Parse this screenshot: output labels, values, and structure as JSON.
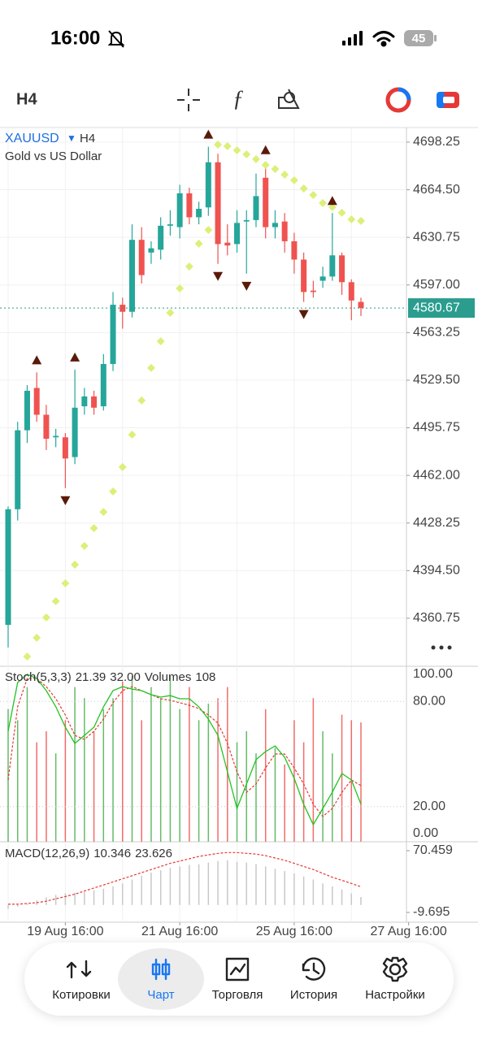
{
  "status_bar": {
    "time": "16:00",
    "battery": "45"
  },
  "toolbar": {
    "timeframe": "H4"
  },
  "chart_data": {
    "type": "candlestick",
    "symbol": "XAUUSD",
    "timeframe": "H4",
    "description": "Gold vs US Dollar",
    "up_color": "#26a69a",
    "down_color": "#ef5350",
    "candles": [
      [
        4356,
        4440,
        4340,
        4438
      ],
      [
        4438,
        4500,
        4430,
        4494
      ],
      [
        4494,
        4526,
        4485,
        4522
      ],
      [
        4524,
        4535,
        4500,
        4505
      ],
      [
        4505,
        4512,
        4480,
        4488
      ],
      [
        4489,
        4495,
        4482,
        4490
      ],
      [
        4489,
        4492,
        4453,
        4474
      ],
      [
        4475,
        4537,
        4470,
        4510
      ],
      [
        4511,
        4524,
        4505,
        4518
      ],
      [
        4518,
        4522,
        4505,
        4510
      ],
      [
        4511,
        4548,
        4508,
        4541
      ],
      [
        4541,
        4592,
        4536,
        4583
      ],
      [
        4583,
        4588,
        4566,
        4578
      ],
      [
        4578,
        4640,
        4574,
        4629
      ],
      [
        4629,
        4638,
        4598,
        4604
      ],
      [
        4620,
        4628,
        4612,
        4623
      ],
      [
        4622,
        4645,
        4615,
        4639
      ],
      [
        4639,
        4650,
        4632,
        4640
      ],
      [
        4638,
        4668,
        4630,
        4662
      ],
      [
        4662,
        4666,
        4640,
        4645
      ],
      [
        4645,
        4656,
        4640,
        4651
      ],
      [
        4652,
        4695,
        4646,
        4684
      ],
      [
        4684,
        4690,
        4612,
        4626
      ],
      [
        4627,
        4640,
        4618,
        4625
      ],
      [
        4626,
        4650,
        4620,
        4641
      ],
      [
        4642,
        4650,
        4605,
        4643
      ],
      [
        4643,
        4676,
        4638,
        4660
      ],
      [
        4673,
        4684,
        4630,
        4638
      ],
      [
        4638,
        4650,
        4630,
        4641
      ],
      [
        4642,
        4648,
        4620,
        4628
      ],
      [
        4628,
        4634,
        4605,
        4615
      ],
      [
        4615,
        4620,
        4585,
        4592
      ],
      [
        4593,
        4600,
        4588,
        4592
      ],
      [
        4600,
        4610,
        4595,
        4603
      ],
      [
        4603,
        4648,
        4600,
        4618
      ],
      [
        4618,
        4620,
        4590,
        4599
      ],
      [
        4599,
        4601,
        4572,
        4586
      ],
      [
        4585,
        4588,
        4575,
        4580.67
      ]
    ],
    "ylim": [
      4326.7,
      4708.6
    ],
    "yticks": [
      4698.25,
      {
        "value": 4664.5,
        "label": "4664.50"
      },
      4630.75,
      {
        "value": 4597,
        "label": "4597.00"
      },
      4563.25,
      {
        "value": 4529.5,
        "label": "4529.50"
      },
      4495.75,
      {
        "value": 4462,
        "label": "4462.00"
      },
      4428.25,
      {
        "value": 4394.5,
        "label": "4394.50"
      },
      4360.75
    ],
    "grid": true,
    "last_price": 4580.67,
    "x_labels": [
      "19 Aug 16:00",
      "21 Aug 16:00",
      "25 Aug 16:00",
      "27 Aug 16:00"
    ],
    "sar": {
      "color": "#dcef78",
      "values": [
        null,
        null,
        4333.6,
        4346.9,
        4361.3,
        4372.8,
        4385.5,
        4398.7,
        4412,
        4424.6,
        4436.1,
        4450.6,
        4467.9,
        4490.9,
        4515.1,
        4538.2,
        4557.1,
        4577.3,
        4594.6,
        4610.1,
        4626.3,
        4636,
        4696.5,
        4695.4,
        4692.5,
        4689.6,
        4686.2,
        4682.1,
        4679.2,
        4675.2,
        4671.2,
        4665.4,
        4660.8,
        4655.1,
        4652.2,
        4648.2,
        4643.5,
        4642.4
      ]
    },
    "fractals_up": [
      null,
      null,
      null,
      4535,
      null,
      null,
      null,
      4537,
      null,
      null,
      null,
      null,
      null,
      null,
      null,
      null,
      null,
      null,
      null,
      null,
      null,
      4695,
      null,
      null,
      null,
      null,
      null,
      4684,
      null,
      null,
      null,
      null,
      null,
      null,
      4648,
      null,
      null,
      null
    ],
    "fractals_down": [
      null,
      null,
      null,
      null,
      null,
      null,
      4453,
      null,
      null,
      null,
      null,
      null,
      null,
      null,
      null,
      null,
      null,
      null,
      null,
      null,
      null,
      null,
      4612,
      null,
      null,
      4605,
      null,
      null,
      null,
      null,
      null,
      4585,
      null,
      null,
      null,
      null,
      null,
      null
    ],
    "fractal_color": "#5a1a0a",
    "stochastic": {
      "label": "Stoch(5,3,3)",
      "k_readout": 21.39,
      "d_readout": {
        "value": 32,
        "label": "32.00"
      },
      "volumes_label": "Volumes",
      "volume_readout": 108,
      "k": {
        "color": "#22c322",
        "values": [
          63,
          90.7,
          95.4,
          93.1,
          86.1,
          76.9,
          65.3,
          56,
          60.6,
          65.3,
          76.9,
          86.1,
          88.4,
          87,
          86.1,
          83.8,
          82.4,
          83.3,
          81.5,
          81.5,
          76.9,
          69.9,
          60.6,
          39.8,
          19,
          32.9,
          46.8,
          51.4,
          54.6,
          48.1,
          36.1,
          21.3,
          9.7,
          19,
          28.2,
          38.9,
          35.2,
          21.39
        ]
      },
      "d": {
        "color": "#e53935",
        "values": [
          35.2,
          76.9,
          93.1,
          93.1,
          88.4,
          81.5,
          72.2,
          60.6,
          58.3,
          63,
          69.9,
          79.2,
          86.1,
          88.4,
          86.1,
          83.8,
          81.5,
          80.6,
          79.2,
          77.8,
          75.9,
          72.2,
          67.6,
          56,
          39.8,
          28.2,
          32.9,
          42.1,
          50,
          50,
          42.1,
          32.9,
          21.3,
          14.4,
          19,
          28.2,
          35.2,
          32
        ]
      },
      "volumes": [
        120,
        110,
        140,
        90,
        100,
        80,
        110,
        140,
        130,
        100,
        120,
        130,
        145,
        150,
        110,
        140,
        130,
        150,
        120,
        140,
        110,
        125,
        130,
        140,
        90,
        100,
        80,
        120,
        85,
        70,
        110,
        90,
        130,
        100,
        80,
        115,
        110,
        108
      ],
      "ylim": [
        0,
        100
      ],
      "yticks": [
        {
          "value": 100,
          "label": "100.00"
        },
        {
          "value": 80,
          "label": "80.00"
        },
        {
          "value": 20,
          "label": "20.00"
        },
        {
          "value": 0,
          "label": "0.00"
        }
      ]
    },
    "macd": {
      "label": "MACD(12,26,9)",
      "main_readout": 10.346,
      "signal_readout": 23.626,
      "main": {
        "color": "#c8c8c8",
        "values": [
          -5,
          -2,
          2,
          6,
          10,
          13,
          15,
          16,
          17,
          19,
          21,
          24,
          28,
          33,
          38,
          42,
          45,
          48,
          50,
          52,
          53,
          55,
          57,
          58,
          56,
          55,
          53,
          50,
          47,
          44,
          41,
          37,
          33,
          28,
          24,
          20,
          15,
          10.346
        ]
      },
      "signal": {
        "color": "#e53935",
        "values": [
          1,
          1,
          2,
          3,
          5,
          8,
          11,
          14,
          18,
          22,
          26,
          30,
          34,
          38,
          42,
          46,
          50,
          54,
          57,
          60,
          63,
          65,
          67,
          68,
          68,
          67,
          66,
          64,
          61,
          58,
          54,
          50,
          46,
          41,
          36,
          32,
          28,
          23.626
        ]
      },
      "ylim": [
        -22.35,
        82.06
      ],
      "yticks": [
        70.459,
        -9.695
      ]
    }
  },
  "nav": {
    "items": [
      "Котировки",
      "Чарт",
      "Торговля",
      "История",
      "Настройки"
    ],
    "active": 1
  }
}
